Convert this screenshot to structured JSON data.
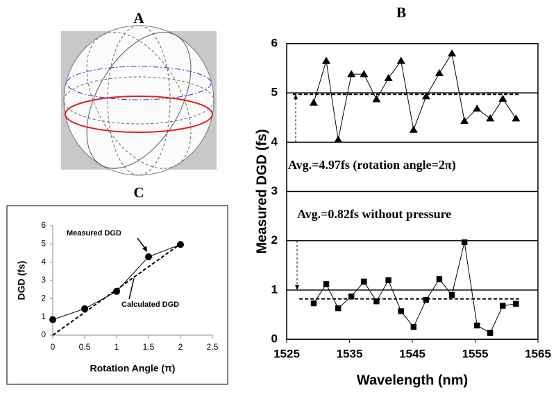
{
  "panel_a": {
    "title": "A"
  },
  "chart_data": [
    {
      "type": "line",
      "title": "B",
      "xlabel": "Wavelength (nm)",
      "ylabel": "Measured DGD (fs)",
      "xlim": [
        1525,
        1565
      ],
      "xticks": [
        1525,
        1535,
        1545,
        1555,
        1565
      ],
      "ylim": [
        0,
        6
      ],
      "yticks": [
        0,
        1,
        2,
        3,
        4,
        5,
        6
      ],
      "grid": true,
      "series": [
        {
          "color": "#000000",
          "marker": "triangle",
          "x": [
            1529.3,
            1531.3,
            1533.2,
            1535.3,
            1537.3,
            1539.3,
            1541.2,
            1543.2,
            1545.2,
            1547.2,
            1549.3,
            1551.3,
            1553.3,
            1555.3,
            1557.4,
            1559.4,
            1561.5
          ],
          "values": [
            4.8,
            5.65,
            4.05,
            5.38,
            5.38,
            4.87,
            5.3,
            5.65,
            4.25,
            4.93,
            5.4,
            5.8,
            4.43,
            4.68,
            4.48,
            4.88,
            4.48
          ]
        },
        {
          "color": "#000000",
          "marker": "square",
          "x": [
            1529.3,
            1531.3,
            1533.2,
            1535.3,
            1537.3,
            1539.3,
            1541.2,
            1543.2,
            1545.2,
            1547.2,
            1549.3,
            1551.3,
            1553.3,
            1555.3,
            1557.4,
            1559.4,
            1561.5
          ],
          "values": [
            0.73,
            1.12,
            0.63,
            0.87,
            1.17,
            0.77,
            1.2,
            0.57,
            0.25,
            0.8,
            1.22,
            0.9,
            1.97,
            0.28,
            0.13,
            0.68,
            0.72
          ]
        },
        {
          "color": "#000000",
          "dash": true,
          "x": [
            1526,
            1562
          ],
          "values": [
            4.97,
            4.97
          ]
        },
        {
          "color": "#000000",
          "dash": true,
          "x": [
            1527,
            1562
          ],
          "values": [
            0.82,
            0.82
          ]
        }
      ],
      "annotations": [
        "Avg.=4.97fs (rotation angle=2π)",
        "Avg.=0.82fs without pressure"
      ]
    },
    {
      "type": "scatter",
      "title": "C",
      "xlabel": "Rotation Angle (π)",
      "ylabel": "DGD (fs)",
      "xlim": [
        0,
        2.5
      ],
      "xticks": [
        0,
        0.5,
        1,
        1.5,
        2,
        2.5
      ],
      "ylim": [
        0,
        6
      ],
      "yticks": [
        0,
        1,
        2,
        3,
        4,
        5,
        6
      ],
      "grid": false,
      "series": [
        {
          "name": "Measured DGD",
          "color": "#000000",
          "marker": "circle",
          "x": [
            0,
            0.5,
            1,
            1.5,
            2
          ],
          "values": [
            0.85,
            1.45,
            2.4,
            4.3,
            4.97
          ]
        },
        {
          "name": "Calculated DGD",
          "color": "#000000",
          "dash": true,
          "x": [
            0,
            2
          ],
          "values": [
            0,
            5
          ]
        }
      ]
    }
  ]
}
